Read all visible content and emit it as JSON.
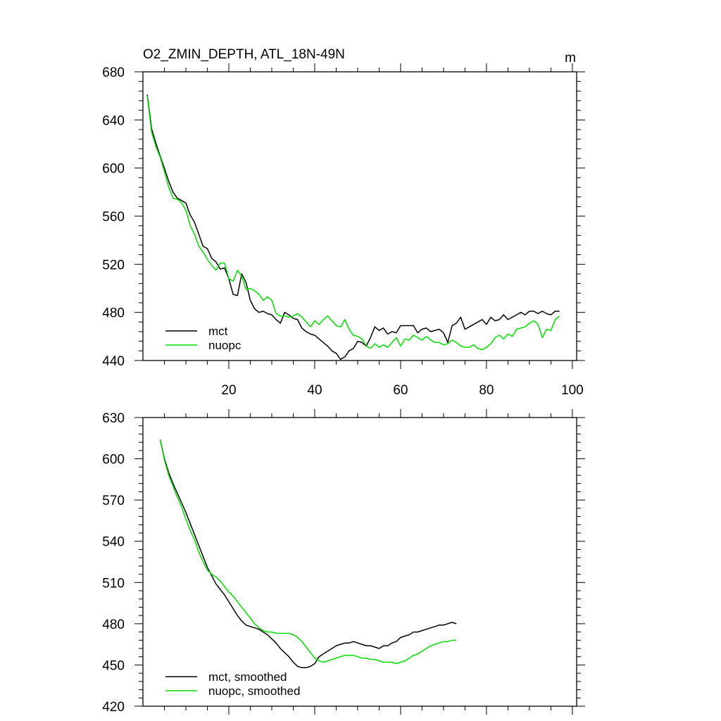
{
  "figure": {
    "title": "O2_ZMIN_DEPTH, ATL_18N-49N",
    "units": "m"
  },
  "chart_data": [
    {
      "type": "line",
      "title": "O2_ZMIN_DEPTH, ATL_18N-49N",
      "units": "m",
      "xlim": [
        0,
        101
      ],
      "ylim": [
        440,
        680
      ],
      "yticks": [
        440,
        480,
        520,
        560,
        600,
        640,
        680
      ],
      "ytick_labels": [
        "440",
        "480",
        "520",
        "560",
        "600",
        "640",
        "680"
      ],
      "xticks": [
        20,
        40,
        60,
        80,
        100
      ],
      "xtick_labels": [
        "20",
        "40",
        "60",
        "80",
        "100"
      ],
      "legend_position": "bottom-left",
      "series": [
        {
          "name": "mct",
          "color": "#000000",
          "values": [
            661,
            633,
            621,
            610,
            600,
            589,
            580,
            575,
            573,
            571,
            561,
            555,
            545,
            535,
            533,
            525,
            522,
            516,
            517,
            508,
            495,
            494,
            512,
            505,
            490,
            483,
            480,
            481,
            479,
            478,
            474,
            471,
            480,
            478,
            475,
            474,
            467,
            464,
            462,
            461,
            458,
            455,
            452,
            448,
            446,
            441,
            443,
            448,
            450,
            456,
            455,
            452,
            459,
            468,
            465,
            467,
            462,
            464,
            463,
            469,
            469,
            469,
            469,
            463,
            466,
            467,
            464,
            465,
            466,
            463,
            455,
            469,
            471,
            476,
            466,
            468,
            470,
            472,
            474,
            470,
            476,
            473,
            474,
            478,
            474,
            476,
            478,
            480,
            478,
            481,
            481,
            479,
            481,
            479,
            478,
            481,
            481
          ]
        },
        {
          "name": "nuopc",
          "color": "#00e000",
          "values": [
            660,
            630,
            618,
            609,
            597,
            584,
            575,
            574,
            571,
            565,
            552,
            545,
            535,
            530,
            524,
            519,
            515,
            521,
            521,
            508,
            506,
            515,
            510,
            499,
            500,
            498,
            495,
            490,
            493,
            490,
            479,
            477,
            477,
            476,
            477,
            479,
            476,
            472,
            468,
            473,
            470,
            474,
            477,
            473,
            469,
            468,
            474,
            466,
            461,
            460,
            458,
            452,
            450,
            454,
            451,
            453,
            451,
            455,
            459,
            452,
            458,
            457,
            461,
            459,
            457,
            460,
            457,
            455,
            455,
            453,
            454,
            457,
            455,
            452,
            451,
            451,
            453,
            450,
            449,
            451,
            454,
            459,
            461,
            458,
            462,
            460,
            466,
            467,
            468,
            471,
            473,
            470,
            459,
            466,
            465,
            474,
            477
          ]
        }
      ]
    },
    {
      "type": "line",
      "title": "",
      "xlim": [
        0,
        101
      ],
      "ylim": [
        420,
        630
      ],
      "yticks": [
        420,
        450,
        480,
        510,
        540,
        570,
        600,
        630
      ],
      "ytick_labels": [
        "420",
        "450",
        "480",
        "510",
        "540",
        "570",
        "600",
        "630"
      ],
      "xticks": [
        20,
        40,
        60,
        80,
        100
      ],
      "xtick_labels": [],
      "legend_position": "bottom-left",
      "series": [
        {
          "name": "mct, smoothed",
          "color": "#000000",
          "x_start": 4,
          "values": [
            614,
            600,
            590,
            582,
            575,
            568,
            561,
            553,
            545,
            537,
            529,
            521,
            515,
            509,
            505,
            501,
            496,
            491,
            486,
            482,
            479,
            478,
            477,
            476,
            474,
            472,
            469,
            466,
            462,
            459,
            456,
            452,
            449,
            448,
            448,
            449,
            451,
            456,
            458,
            460,
            462,
            464,
            465,
            466,
            466,
            467,
            466,
            465,
            464,
            464,
            463,
            462,
            464,
            464,
            466,
            467,
            470,
            471,
            472,
            474,
            474,
            475,
            476,
            477,
            478,
            479,
            479,
            480,
            481,
            480
          ]
        },
        {
          "name": "nuopc, smoothed",
          "color": "#00e000",
          "x_start": 4,
          "values": [
            614,
            599,
            588,
            580,
            572,
            565,
            556,
            548,
            541,
            532,
            525,
            519,
            516,
            514,
            511,
            507,
            503,
            500,
            496,
            492,
            488,
            484,
            480,
            477,
            475,
            474,
            474,
            473,
            473,
            473,
            473,
            472,
            470,
            467,
            463,
            459,
            455,
            453,
            452,
            453,
            454,
            455,
            456,
            457,
            457,
            457,
            456,
            455,
            455,
            454,
            454,
            453,
            452,
            452,
            452,
            451,
            452,
            453,
            455,
            457,
            458,
            460,
            462,
            464,
            465,
            466,
            467,
            467,
            468,
            468
          ]
        }
      ]
    }
  ]
}
